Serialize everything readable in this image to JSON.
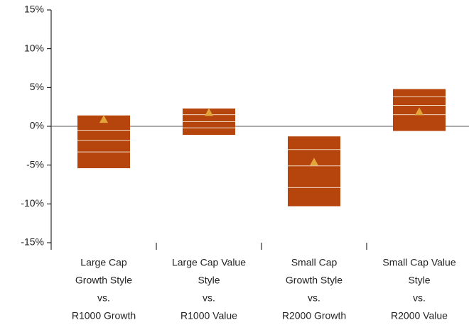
{
  "chart_data": {
    "type": "floating-bar",
    "categories": [
      [
        "Large Cap",
        "Growth Style",
        "vs.",
        "R1000 Growth"
      ],
      [
        "Large Cap Value",
        "Style",
        "vs.",
        "R1000 Value"
      ],
      [
        "Small Cap",
        "Growth Style",
        "vs.",
        "R2000 Growth"
      ],
      [
        "Small Cap Value",
        "Style",
        "vs.",
        "R2000 Value"
      ]
    ],
    "tops": [
      1.4,
      2.3,
      -1.3,
      4.8
    ],
    "bottoms": [
      -5.4,
      -1.1,
      -10.3,
      -0.6
    ],
    "lines": [
      [
        -0.5,
        -1.8,
        -3.3
      ],
      [
        1.5,
        0.6,
        -0.2
      ],
      [
        -3.0,
        -5.1,
        -7.9
      ],
      [
        3.8,
        2.7,
        1.5
      ]
    ],
    "markers": [
      0.9,
      1.8,
      -4.6,
      1.9
    ],
    "color": "#b5450d",
    "line_color": "#f3d9c4",
    "marker_color": "#e3a43a",
    "ylim": [
      -15,
      15
    ],
    "yticks": [
      {
        "value": -15,
        "label": "-15%"
      },
      {
        "value": -10,
        "label": "-10%"
      },
      {
        "value": -5,
        "label": "-5%"
      },
      {
        "value": 0,
        "label": "0%"
      },
      {
        "value": 5,
        "label": "5%"
      },
      {
        "value": 10,
        "label": "10%"
      },
      {
        "value": 15,
        "label": "15%"
      }
    ]
  }
}
